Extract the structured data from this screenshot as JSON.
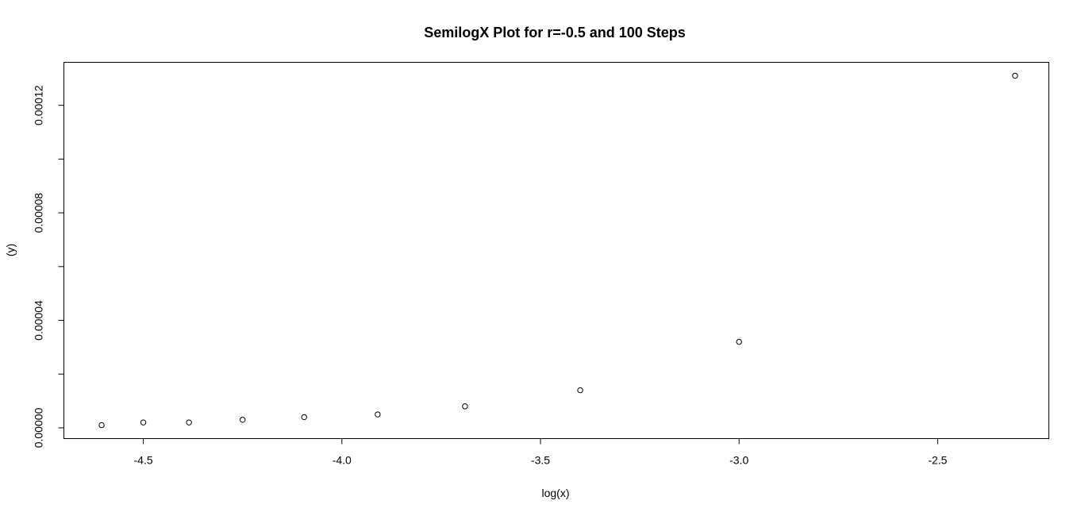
{
  "chart_data": {
    "type": "scatter",
    "title": "SemilogX Plot for r=-0.5 and 100 Steps",
    "xlabel": "log(x)",
    "ylabel": "(y)",
    "xlim": [
      -4.7,
      -2.22
    ],
    "ylim": [
      -4e-06,
      0.000136
    ],
    "x_ticks": [
      -4.5,
      -4.0,
      -3.5,
      -3.0,
      -2.5
    ],
    "x_tick_labels": [
      "-4.5",
      "-4.0",
      "-3.5",
      "-3.0",
      "-2.5"
    ],
    "y_ticks": [
      0,
      2e-05,
      4e-05,
      6e-05,
      8e-05,
      0.0001,
      0.00012
    ],
    "y_tick_labels": [
      "0.00000",
      "",
      "0.00004",
      "",
      "0.00008",
      "",
      "0.00012"
    ],
    "grid": false,
    "legend": "none",
    "marker": "open-circle",
    "marker_color": "#000000",
    "series": [
      {
        "x": [
          -4.605,
          -4.5,
          -4.385,
          -4.25,
          -4.095,
          -3.91,
          -3.69,
          -3.4,
          -3.0,
          -2.305
        ],
        "y": [
          1e-06,
          2e-06,
          2e-06,
          3e-06,
          4e-06,
          5e-06,
          8e-06,
          1.4e-05,
          3.2e-05,
          0.000131
        ]
      }
    ]
  }
}
